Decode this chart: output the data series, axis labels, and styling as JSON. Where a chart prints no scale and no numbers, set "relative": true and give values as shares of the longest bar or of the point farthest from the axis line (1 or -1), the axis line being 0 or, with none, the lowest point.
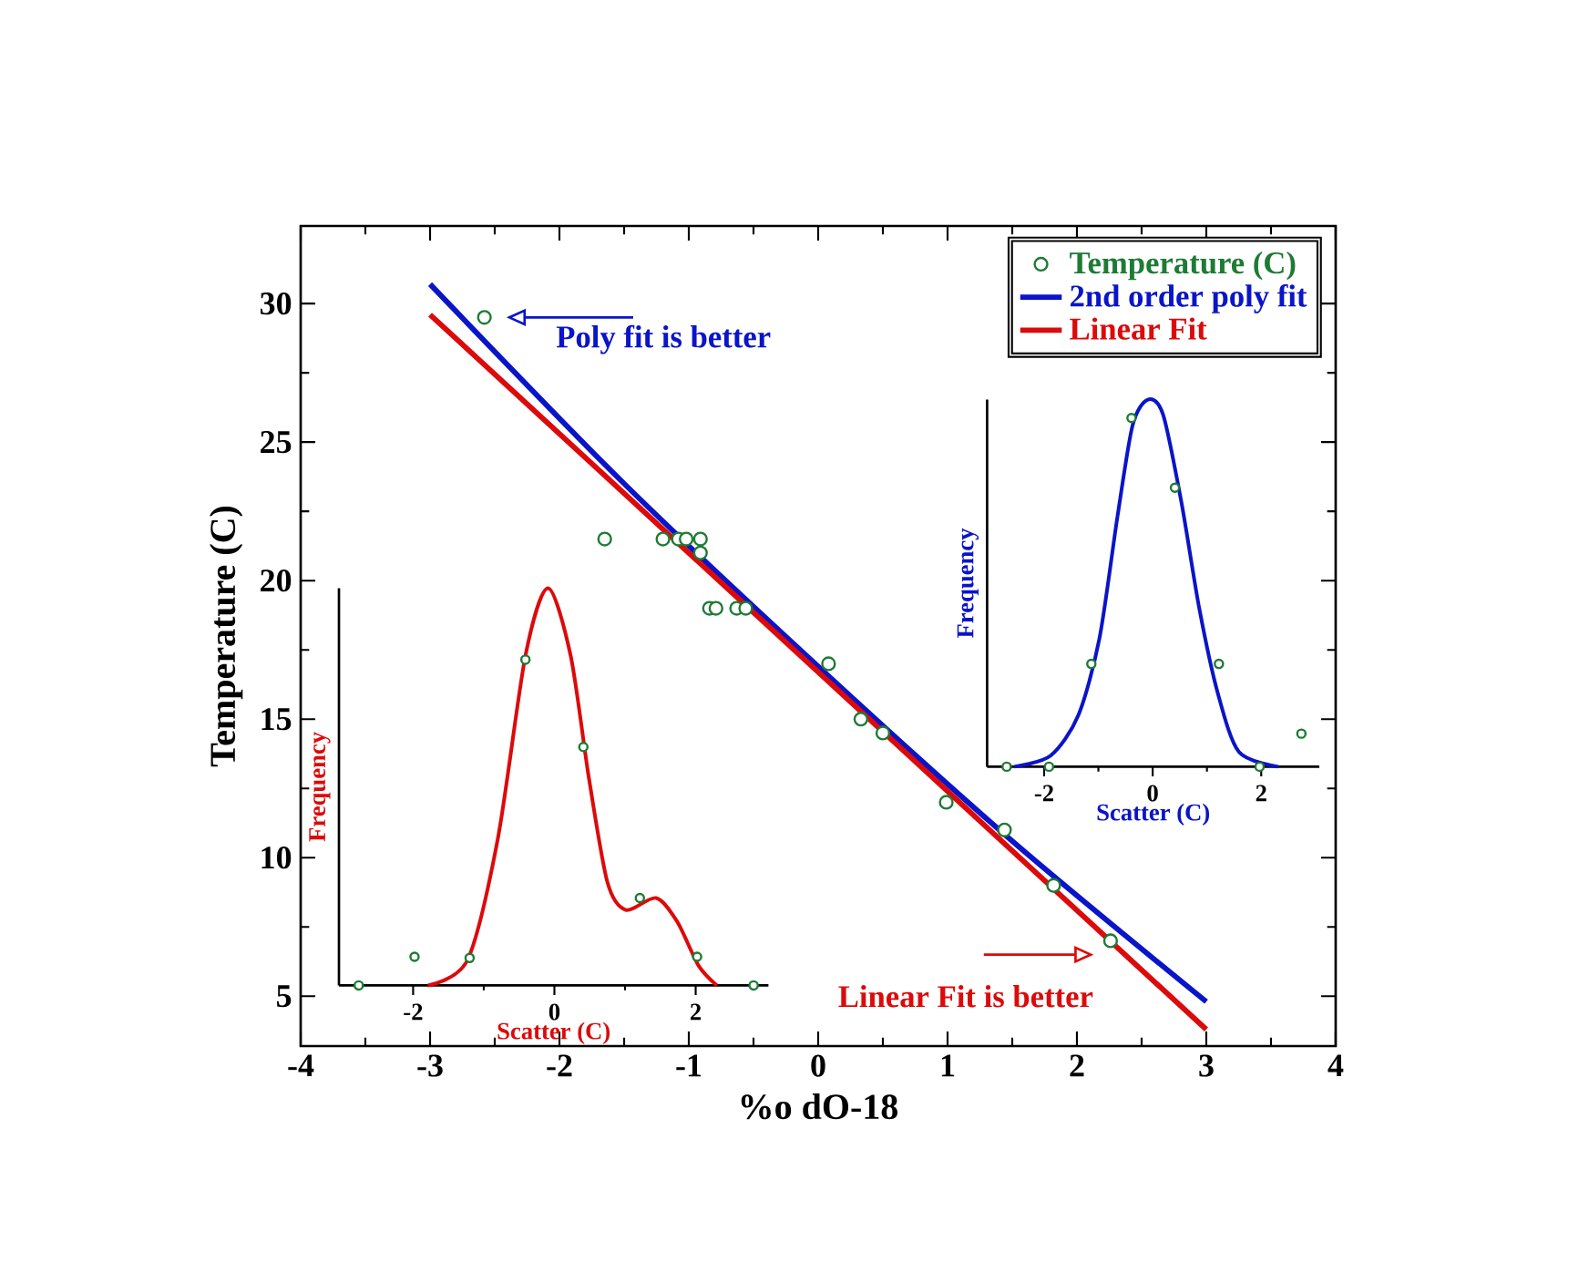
{
  "chart_data": [
    {
      "type": "scatter",
      "xlabel": "%o dO-18",
      "ylabel": "Temperature (C)",
      "xlim": [
        -4,
        4
      ],
      "ylim": [
        3.2,
        32.8
      ],
      "xticks": [
        -4,
        -3,
        -2,
        -1,
        0,
        1,
        2,
        3,
        4
      ],
      "yticks": [
        5,
        10,
        15,
        20,
        25,
        30
      ],
      "legend": "top right",
      "annotations": [
        {
          "text": "Poly fit is better",
          "x": -2.58,
          "y": 29.5
        },
        {
          "text": "Linear Fit is better",
          "x": 2.26,
          "y": 7.0
        }
      ],
      "series": [
        {
          "name": "Temperature (C)",
          "marker": "circle",
          "color": "#1e7b34",
          "x": [
            -2.58,
            -1.65,
            -1.2,
            -1.08,
            -1.02,
            -0.91,
            -0.91,
            -0.84,
            -0.79,
            -0.63,
            -0.56,
            0.08,
            0.33,
            0.5,
            0.99,
            1.44,
            1.82,
            2.26
          ],
          "values": [
            29.5,
            21.5,
            21.5,
            21.5,
            21.5,
            21.5,
            21.0,
            19,
            19,
            19,
            19,
            17,
            15,
            14.5,
            12,
            11,
            9,
            7.0
          ]
        },
        {
          "name": "2nd order poly fit",
          "type": "line",
          "color": "#0a14c8",
          "x": [
            -3,
            -1.5,
            0,
            1.5,
            3
          ],
          "values": [
            30.7,
            23.5,
            16.9,
            10.6,
            4.8
          ]
        },
        {
          "name": "Linear Fit",
          "type": "line",
          "color": "#dc0a0a",
          "x": [
            -3,
            3
          ],
          "values": [
            29.6,
            3.8
          ]
        }
      ]
    },
    {
      "type": "line",
      "relative": true,
      "xlabel": "Scatter (C)",
      "ylabel": "Frequency",
      "xlim": [
        -3.05,
        3.03
      ],
      "xticks": [
        -2,
        0,
        2
      ],
      "tick_labels": "x",
      "series": [
        {
          "color": "#dc0a0a",
          "x": [
            -1.79,
            -1.23,
            -0.8,
            -0.41,
            -0.09,
            0.23,
            0.49,
            0.75,
            1.01,
            1.44,
            1.74,
            2.04,
            2.3
          ],
          "values": [
            0,
            0.064,
            0.37,
            0.83,
            1.0,
            0.83,
            0.52,
            0.26,
            0.19,
            0.22,
            0.16,
            0.05,
            0
          ]
        },
        {
          "type": "scatter",
          "marker": "circle",
          "color": "#1e7b34",
          "x": [
            -2.77,
            -1.98,
            -1.2,
            -0.41,
            0.41,
            1.21,
            2.02,
            2.82
          ],
          "values": [
            0,
            0.072,
            0.069,
            0.82,
            0.6,
            0.22,
            0.072,
            0
          ]
        }
      ]
    },
    {
      "type": "line",
      "relative": true,
      "xlabel": "Scatter (C)",
      "ylabel": "Frequency",
      "xlim": [
        -3.05,
        3.07
      ],
      "xticks": [
        -2,
        0,
        2
      ],
      "tick_labels": "x",
      "series": [
        {
          "color": "#0a14c8",
          "x": [
            -2.55,
            -1.88,
            -1.37,
            -0.98,
            -0.65,
            -0.37,
            -0.09,
            0.19,
            0.53,
            0.86,
            1.2,
            1.59,
            2.31
          ],
          "values": [
            0,
            0.03,
            0.14,
            0.35,
            0.68,
            0.93,
            1.0,
            0.96,
            0.72,
            0.43,
            0.2,
            0.04,
            0
          ]
        },
        {
          "type": "scatter",
          "marker": "circle",
          "color": "#1e7b34",
          "x": [
            -2.69,
            -1.91,
            -1.13,
            -0.39,
            0.41,
            1.22,
            1.97,
            2.74
          ],
          "values": [
            0,
            0,
            0.28,
            0.95,
            0.76,
            0.28,
            0,
            0.09
          ]
        }
      ]
    }
  ]
}
